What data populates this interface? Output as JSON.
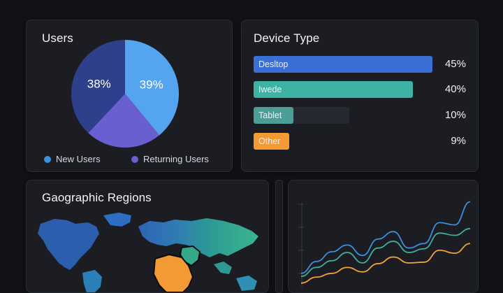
{
  "users": {
    "title": "Users",
    "legend": [
      {
        "label": "New Users",
        "color": "#3d8fd8"
      },
      {
        "label": "Returning Users",
        "color": "#6a5fd0"
      }
    ]
  },
  "device": {
    "title": "Device Type"
  },
  "geo": {
    "title": "Gaographic Regions"
  },
  "chart_data": [
    {
      "type": "pie",
      "title": "Users",
      "slices": [
        {
          "label": "New Users",
          "value": 39,
          "display": "39%",
          "color": "#55a4f0"
        },
        {
          "label": "Returning Users",
          "value": 23,
          "display": "",
          "color": "#6a5fd0"
        },
        {
          "label": "",
          "value": 38,
          "display": "38%",
          "color": "#2e3f8c"
        }
      ]
    },
    {
      "type": "bar",
      "title": "Device Type",
      "categories": [
        "Desltop",
        "Iwede",
        "Tablet",
        "Other"
      ],
      "values": [
        45,
        40,
        10,
        9
      ],
      "value_labels": [
        "45%",
        "40%",
        "10%",
        "9%"
      ],
      "colors": [
        "#3a6fd6",
        "#3fb3a3",
        "#4a9e96",
        "#f39a35"
      ],
      "track_values": [
        45,
        40,
        24,
        9
      ]
    },
    {
      "type": "line",
      "title": "",
      "x": [
        0,
        1,
        2,
        3,
        4,
        5,
        6,
        7,
        8,
        9,
        10,
        11
      ],
      "series": [
        {
          "color": "#3a8fdf",
          "values": [
            1.6,
            3.2,
            4.5,
            5.4,
            4.0,
            6.2,
            7.2,
            5.0,
            5.6,
            8.4,
            8.1,
            11.2
          ]
        },
        {
          "color": "#3fae9a",
          "values": [
            1.2,
            2.4,
            3.3,
            4.4,
            3.0,
            5.0,
            5.9,
            4.4,
            4.9,
            7.0,
            6.7,
            7.6
          ]
        },
        {
          "color": "#f2a23a",
          "values": [
            0.3,
            1.1,
            1.6,
            2.4,
            1.8,
            2.9,
            3.8,
            3.0,
            3.1,
            4.7,
            4.3,
            5.6
          ]
        }
      ],
      "ylim": [
        0,
        12
      ]
    }
  ]
}
